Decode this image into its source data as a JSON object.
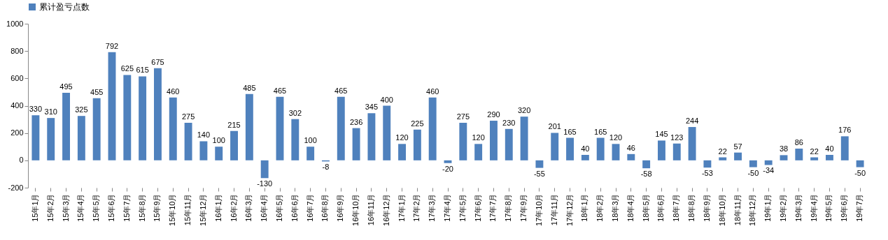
{
  "chart_data": {
    "type": "bar",
    "categories": [
      "15年1月",
      "15年2月",
      "15年3月",
      "15年4月",
      "15年5月",
      "15年6月",
      "15年7月",
      "15年8月",
      "15年9月",
      "15年10月",
      "15年11月",
      "15年12月",
      "16年1月",
      "16年2月",
      "16年3月",
      "16年4月",
      "16年5月",
      "16年6月",
      "16年7月",
      "16年8月",
      "16年9月",
      "16年10月",
      "16年11月",
      "16年12月",
      "17年1月",
      "17年2月",
      "17年3月",
      "17年4月",
      "17年5月",
      "17年6月",
      "17年7月",
      "17年8月",
      "17年9月",
      "17年10月",
      "17年11月",
      "17年12月",
      "18年1月",
      "18年2月",
      "18年3月",
      "18年4月",
      "18年5月",
      "18年6月",
      "18年7月",
      "18年8月",
      "18年9月",
      "18年10月",
      "18年11月",
      "18年12月",
      "19年1月",
      "19年2月",
      "19年3月",
      "19年4月",
      "19年5月",
      "19年6月",
      "19年7月"
    ],
    "series": [
      {
        "name": "累计盈亏点数",
        "color": "#4f81bd",
        "values": [
          330,
          310,
          495,
          325,
          455,
          792,
          625,
          615,
          675,
          460,
          275,
          140,
          100,
          215,
          485,
          -130,
          465,
          302,
          100,
          -8,
          465,
          236,
          345,
          400,
          120,
          225,
          460,
          -20,
          275,
          120,
          290,
          230,
          320,
          -55,
          201,
          165,
          40,
          165,
          120,
          46,
          -58,
          145,
          123,
          244,
          -53,
          22,
          57,
          -50,
          -34,
          38,
          86,
          22,
          40,
          176,
          -50
        ]
      }
    ],
    "ylim": [
      -200,
      1000
    ],
    "yticks": [
      -200,
      0,
      200,
      400,
      600,
      800,
      1000
    ],
    "grid": false,
    "legend": "top",
    "data_labels": true
  }
}
